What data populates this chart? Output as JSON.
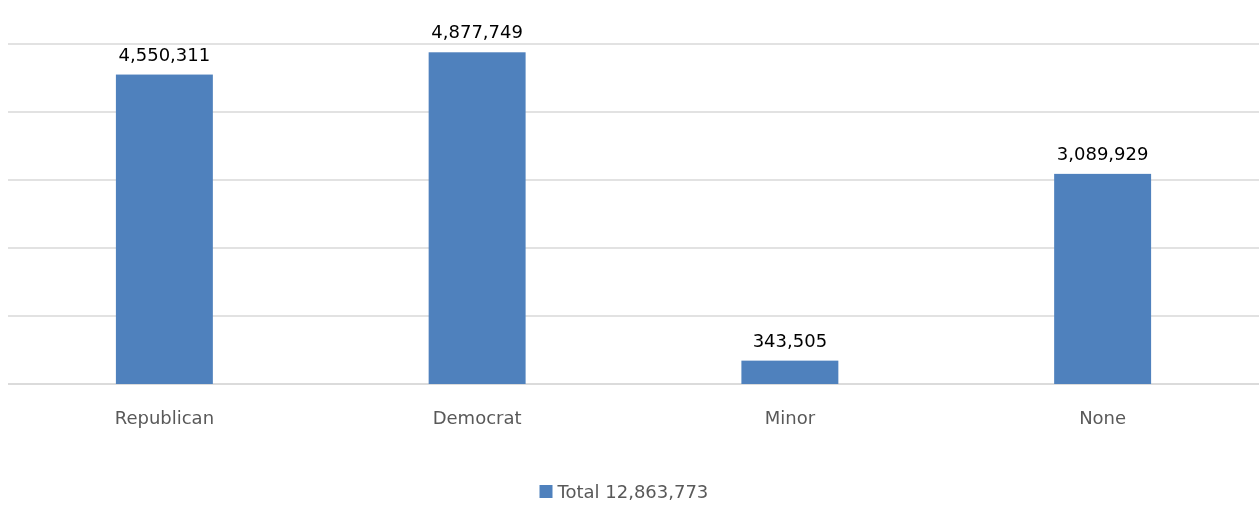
{
  "chart_data": {
    "type": "bar",
    "categories": [
      "Republican",
      "Democrat",
      "Minor",
      "None"
    ],
    "series": [
      {
        "name": "Total 12,863,773",
        "color": "#4f81bd",
        "values": [
          4550311,
          4877749,
          343505,
          3089929
        ],
        "value_labels": [
          "4,550,311",
          "4,877,749",
          "343,505",
          "3,089,929"
        ]
      }
    ],
    "grid": "y",
    "tick_labels": "x",
    "legend": "bottom"
  }
}
